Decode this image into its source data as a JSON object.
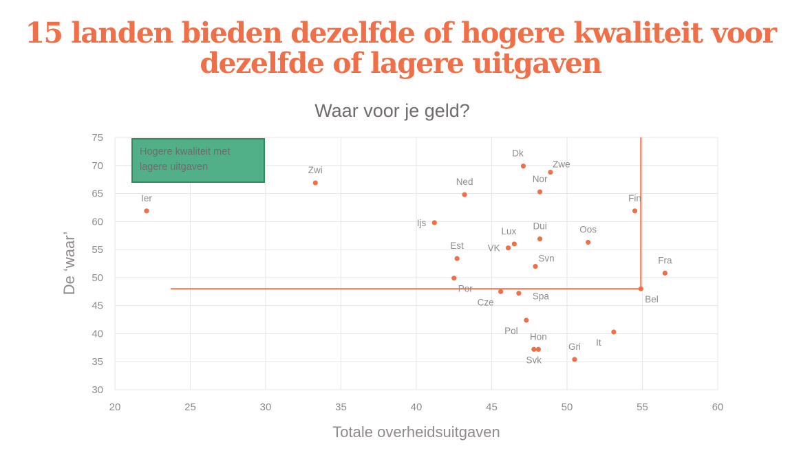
{
  "headline": {
    "line1": "15 landen bieden dezelfde of hogere kwaliteit voor",
    "line2": "dezelfde of lagere uitgaven"
  },
  "colors": {
    "accent": "#ef7048",
    "annotation_fill": "#52b088",
    "annotation_border": "#2f8a5e",
    "grid": "#e6e6e6",
    "text": "#8f8a8b"
  },
  "chart_data": {
    "type": "scatter",
    "title": "Waar voor je geld?",
    "xlabel": "Totale overheidsuitgaven",
    "ylabel": "De ‘waar’",
    "xlim": [
      20,
      60
    ],
    "ylim": [
      30,
      75
    ],
    "xticks": [
      20,
      25,
      30,
      35,
      40,
      45,
      50,
      55,
      60
    ],
    "yticks": [
      30,
      35,
      40,
      45,
      50,
      55,
      60,
      65,
      70,
      75
    ],
    "grid": true,
    "annotation": {
      "text_line1": "Hogere kwaliteit met",
      "text_line2": "lagere uitgaven",
      "placement": "top-left"
    },
    "reference_lines": {
      "horizontal": {
        "y": 48.0,
        "x_from": 23.7,
        "x_to": 54.9
      },
      "vertical": {
        "x": 54.9,
        "y_from": 48.0,
        "y_to": 75
      }
    },
    "points": [
      {
        "label": "Ier",
        "x": 22.1,
        "y": 61.9,
        "lpos": "above"
      },
      {
        "label": "Zwi",
        "x": 33.3,
        "y": 66.9,
        "lpos": "above"
      },
      {
        "label": "Ned",
        "x": 43.2,
        "y": 64.8,
        "lpos": "above"
      },
      {
        "label": "Dk",
        "x": 47.1,
        "y": 69.9,
        "lpos": "aboveleft"
      },
      {
        "label": "Zwe",
        "x": 48.9,
        "y": 68.8,
        "lpos": "aboveright"
      },
      {
        "label": "Nor",
        "x": 48.2,
        "y": 65.3,
        "lpos": "above"
      },
      {
        "label": "Ijs",
        "x": 41.2,
        "y": 59.8,
        "lpos": "left"
      },
      {
        "label": "Fin",
        "x": 54.5,
        "y": 61.9,
        "lpos": "above"
      },
      {
        "label": "Dui",
        "x": 48.2,
        "y": 56.9,
        "lpos": "above"
      },
      {
        "label": "Oos",
        "x": 51.4,
        "y": 56.3,
        "lpos": "above"
      },
      {
        "label": "Lux",
        "x": 46.5,
        "y": 56.0,
        "lpos": "aboveleft"
      },
      {
        "label": "VK",
        "x": 46.1,
        "y": 55.3,
        "lpos": "left"
      },
      {
        "label": "Est",
        "x": 42.7,
        "y": 53.4,
        "lpos": "above"
      },
      {
        "label": "Svn",
        "x": 47.9,
        "y": 52.0,
        "lpos": "aboveright"
      },
      {
        "label": "Fra",
        "x": 56.5,
        "y": 50.8,
        "lpos": "above"
      },
      {
        "label": "Por",
        "x": 42.5,
        "y": 49.9,
        "lpos": "belowright"
      },
      {
        "label": "Bel",
        "x": 54.9,
        "y": 48.0,
        "lpos": "belowright"
      },
      {
        "label": "Cze",
        "x": 45.6,
        "y": 47.5,
        "lpos": "belowleft"
      },
      {
        "label": "Spa",
        "x": 46.8,
        "y": 47.2,
        "lpos": "right"
      },
      {
        "label": "Pol",
        "x": 47.3,
        "y": 42.4,
        "lpos": "belowleft"
      },
      {
        "label": "It",
        "x": 53.1,
        "y": 40.3,
        "lpos": "belowleft"
      },
      {
        "label": "Hon",
        "x": 48.1,
        "y": 37.2,
        "lpos": "above"
      },
      {
        "label": "Svk",
        "x": 47.8,
        "y": 37.2,
        "lpos": "below"
      },
      {
        "label": "Gri",
        "x": 50.5,
        "y": 35.4,
        "lpos": "above"
      }
    ]
  }
}
